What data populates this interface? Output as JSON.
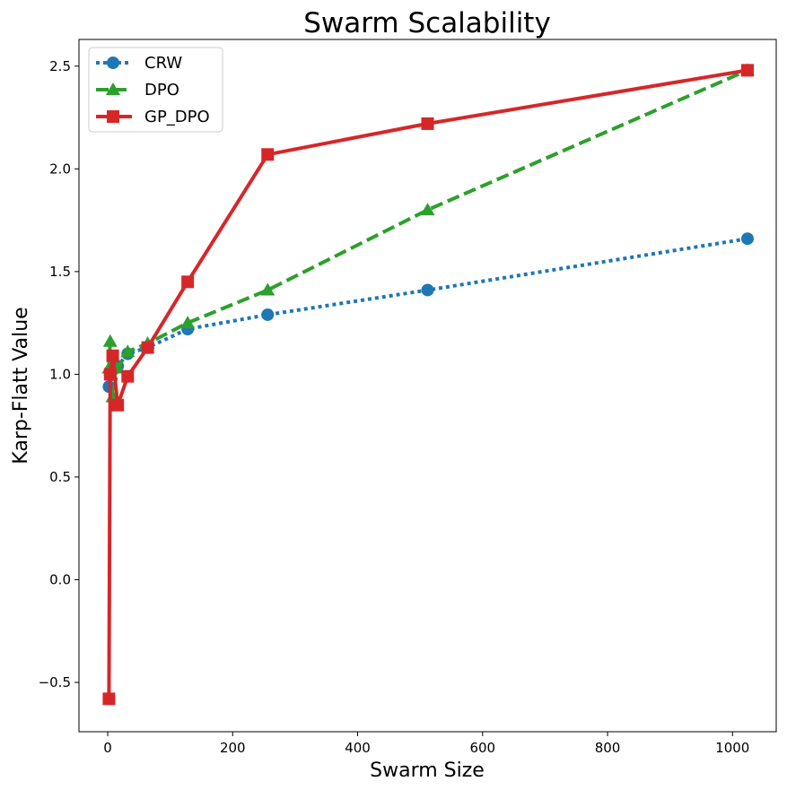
{
  "chart_data": {
    "type": "line",
    "title": "Swarm Scalability",
    "xlabel": "Swarm Size",
    "ylabel": "Karp-Flatt Value",
    "xlim": [
      -46,
      1070
    ],
    "ylim": [
      -0.74,
      2.63
    ],
    "x_ticks": [
      0,
      200,
      400,
      600,
      800,
      1000
    ],
    "y_ticks": [
      -0.5,
      0.0,
      0.5,
      1.0,
      1.5,
      2.0,
      2.5
    ],
    "x_tick_labels": [
      "0",
      "200",
      "400",
      "600",
      "800",
      "1000"
    ],
    "y_tick_labels": [
      "−0.5",
      "0.0",
      "0.5",
      "1.0",
      "1.5",
      "2.0",
      "2.5"
    ],
    "grid": false,
    "legend_position": "top-left",
    "series": [
      {
        "name": "CRW",
        "color": "#1f77b4",
        "line_style": "dotted",
        "marker": "circle",
        "x": [
          2,
          4,
          8,
          16,
          32,
          64,
          128,
          256,
          512,
          1024
        ],
        "y": [
          0.94,
          1.0,
          1.02,
          1.04,
          1.1,
          1.13,
          1.22,
          1.29,
          1.41,
          1.66
        ]
      },
      {
        "name": "DPO",
        "color": "#2ca02c",
        "line_style": "dashed",
        "marker": "triangle",
        "x": [
          2,
          4,
          8,
          16,
          32,
          64,
          128,
          256,
          512,
          1024
        ],
        "y": [
          1.03,
          1.16,
          0.89,
          1.03,
          1.11,
          1.15,
          1.25,
          1.41,
          1.8,
          2.48
        ]
      },
      {
        "name": "GP_DPO",
        "color": "#d62728",
        "line_style": "solid",
        "marker": "square",
        "x": [
          2,
          4,
          8,
          16,
          32,
          64,
          128,
          256,
          512,
          1024
        ],
        "y": [
          -0.58,
          1.0,
          1.09,
          0.85,
          0.99,
          1.13,
          1.45,
          2.07,
          2.22,
          2.48
        ]
      }
    ]
  }
}
